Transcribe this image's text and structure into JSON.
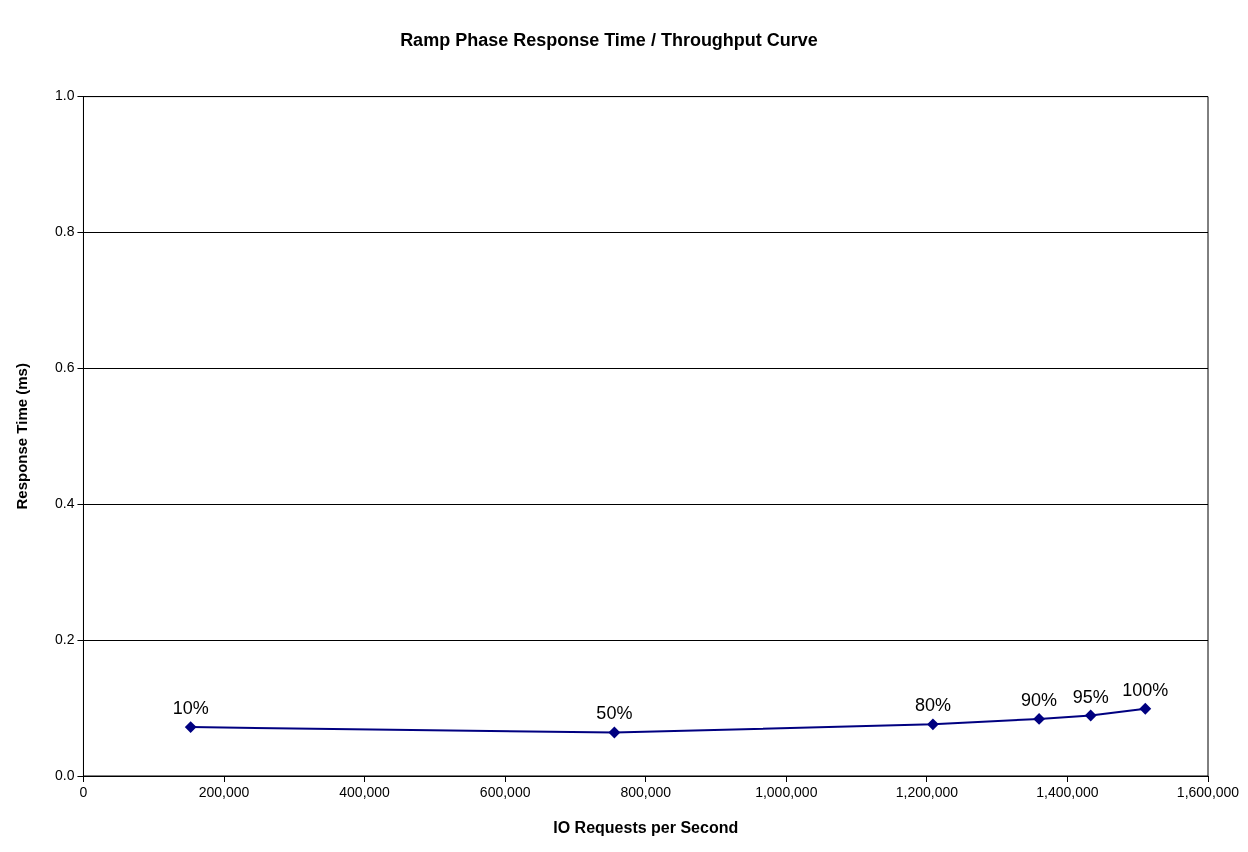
{
  "chart_data": {
    "type": "line",
    "title": "Ramp Phase Response Time / Throughput Curve",
    "xlabel": "IO Requests per Second",
    "ylabel": "Response Time (ms)",
    "x": [
      152500,
      755400,
      1208600,
      1359700,
      1433100,
      1510800
    ],
    "series": [
      {
        "color": "#000080",
        "values": [
          0.072,
          0.064,
          0.076,
          0.084,
          0.089,
          0.099
        ]
      }
    ],
    "annotations": [
      {
        "text": "10%",
        "x": 152500,
        "y": 0.072
      },
      {
        "text": "50%",
        "x": 755400,
        "y": 0.064
      },
      {
        "text": "80%",
        "x": 1208600,
        "y": 0.076
      },
      {
        "text": "90%",
        "x": 1359700,
        "y": 0.084
      },
      {
        "text": "95%",
        "x": 1433100,
        "y": 0.089
      },
      {
        "text": "100%",
        "x": 1510800,
        "y": 0.099
      }
    ],
    "xlim": [
      0,
      1600000
    ],
    "xticks": [
      {
        "value": 0,
        "label": "0"
      },
      {
        "value": 200000,
        "label": "200,000"
      },
      {
        "value": 400000,
        "label": "400,000"
      },
      {
        "value": 600000,
        "label": "600,000"
      },
      {
        "value": 800000,
        "label": "800,000"
      },
      {
        "value": 1000000,
        "label": "1,000,000"
      },
      {
        "value": 1200000,
        "label": "1,200,000"
      },
      {
        "value": 1400000,
        "label": "1,400,000"
      },
      {
        "value": 1600000,
        "label": "1,600,000"
      }
    ],
    "ylim": [
      0,
      1
    ],
    "yticks": [
      {
        "value": 0,
        "label": "0.0"
      },
      {
        "value": 0.2,
        "label": "0.2"
      },
      {
        "value": 0.4,
        "label": "0.4"
      },
      {
        "value": 0.6,
        "label": "0.6"
      },
      {
        "value": 0.8,
        "label": "0.8"
      },
      {
        "value": 1,
        "label": "1.0"
      }
    ],
    "grid": "y",
    "legend": false,
    "marker": "diamond",
    "line_style": "solid"
  }
}
